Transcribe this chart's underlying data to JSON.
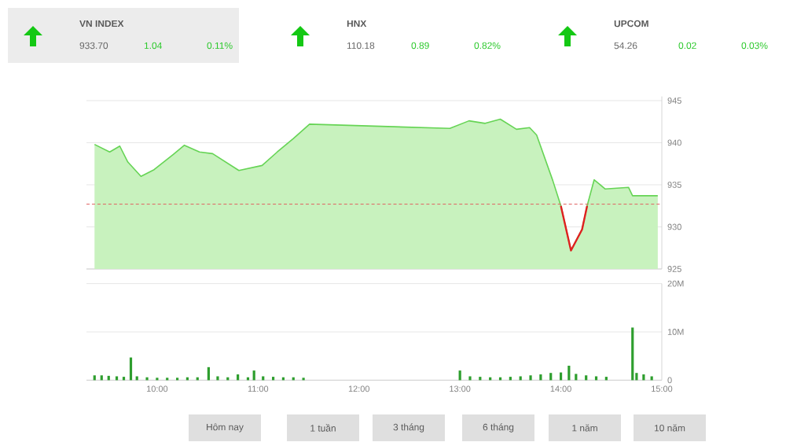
{
  "chart_data": [
    {
      "type": "area",
      "tick_labels": "y",
      "grid": "y",
      "annotations": [
        "VN INDEX",
        "933.70",
        "1.04",
        "0.11%",
        "HNX",
        "110.18",
        "0.89",
        "0.82%",
        "UPCOM",
        "54.26",
        "0.02",
        "0.03%"
      ],
      "xlim": [
        9.3,
        15.0
      ],
      "ylim": [
        925,
        945.5
      ],
      "yticks": [
        925,
        930,
        935,
        940,
        945
      ],
      "ref_lines": [
        {
          "axis": "y",
          "value": 932.7,
          "color": "#e06060",
          "line_style": "dashed"
        }
      ],
      "series": [
        {
          "type": "area",
          "color": "#66d455",
          "x": [
            9.38,
            9.53,
            9.63,
            9.71,
            9.84,
            9.97,
            10.16,
            10.27,
            10.42,
            10.55,
            10.81,
            11.04,
            11.19,
            11.35,
            11.51,
            12.9,
            13.09,
            13.25,
            13.4,
            13.56,
            13.69,
            13.76,
            13.92,
            14.0,
            14.1,
            14.21,
            14.26,
            14.33,
            14.44,
            14.67,
            14.71,
            14.96
          ],
          "values": [
            939.8,
            938.9,
            939.6,
            937.7,
            936.0,
            936.8,
            938.6,
            939.7,
            938.9,
            938.7,
            936.7,
            937.3,
            938.9,
            940.5,
            942.2,
            941.7,
            942.6,
            942.3,
            942.8,
            941.6,
            941.8,
            940.9,
            935.5,
            932.5,
            927.2,
            929.7,
            932.5,
            935.6,
            934.5,
            934.7,
            933.7,
            933.7
          ]
        },
        {
          "type": "line",
          "color": "#e02020",
          "x": [
            14.0,
            14.1,
            14.21,
            14.26
          ],
          "values": [
            932.5,
            927.2,
            929.7,
            932.5
          ]
        }
      ]
    },
    {
      "type": "bar",
      "grid": "y",
      "annotations": [
        "Hôm nay",
        "1 tuần",
        "3 tháng",
        "6 tháng",
        "1 năm",
        "10 năm"
      ],
      "xlim": [
        9.3,
        15.0
      ],
      "xticks": [
        {
          "value": 10,
          "label": "10:00"
        },
        {
          "value": 11,
          "label": "11:00"
        },
        {
          "value": 12,
          "label": "12:00"
        },
        {
          "value": 13,
          "label": "13:00"
        },
        {
          "value": 14,
          "label": "14:00"
        },
        {
          "value": 15,
          "label": "15:00"
        }
      ],
      "ylim": [
        0,
        20
      ],
      "yticks": [
        0,
        {
          "value": 10,
          "label": "10M"
        },
        {
          "value": 20,
          "label": "20M"
        }
      ],
      "series": [
        {
          "color": "#2e9e2e",
          "x": [
            9.38,
            9.45,
            9.52,
            9.6,
            9.67,
            9.74,
            9.8,
            9.9,
            10.0,
            10.1,
            10.2,
            10.3,
            10.4,
            10.51,
            10.6,
            10.7,
            10.8,
            10.9,
            10.96,
            11.05,
            11.15,
            11.25,
            11.35,
            11.45,
            13.0,
            13.1,
            13.2,
            13.3,
            13.4,
            13.5,
            13.6,
            13.7,
            13.8,
            13.9,
            14.0,
            14.08,
            14.15,
            14.25,
            14.35,
            14.45,
            14.71,
            14.75,
            14.82,
            14.9
          ],
          "values": [
            1.0,
            1.0,
            0.9,
            0.8,
            0.7,
            4.7,
            0.8,
            0.6,
            0.5,
            0.5,
            0.5,
            0.6,
            0.6,
            2.7,
            0.8,
            0.6,
            1.2,
            0.6,
            2.0,
            0.8,
            0.7,
            0.6,
            0.6,
            0.5,
            2.0,
            0.8,
            0.7,
            0.6,
            0.6,
            0.7,
            0.8,
            1.0,
            1.2,
            1.5,
            1.6,
            3.0,
            1.3,
            1.0,
            0.8,
            0.7,
            10.9,
            1.5,
            1.2,
            0.8
          ]
        }
      ]
    }
  ]
}
